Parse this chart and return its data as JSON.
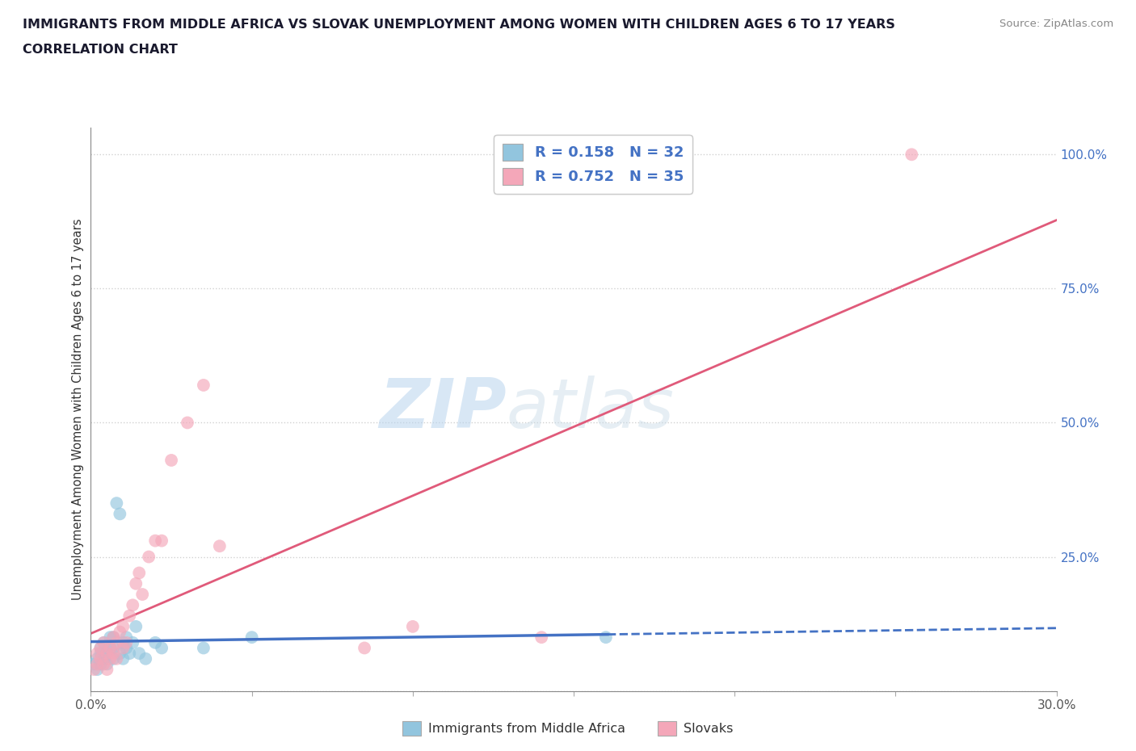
{
  "title_line1": "IMMIGRANTS FROM MIDDLE AFRICA VS SLOVAK UNEMPLOYMENT AMONG WOMEN WITH CHILDREN AGES 6 TO 17 YEARS",
  "title_line2": "CORRELATION CHART",
  "source_text": "Source: ZipAtlas.com",
  "ylabel": "Unemployment Among Women with Children Ages 6 to 17 years",
  "xlim": [
    0.0,
    0.3
  ],
  "ylim": [
    0.0,
    1.05
  ],
  "legend_label1": "Immigrants from Middle Africa",
  "legend_label2": "Slovaks",
  "R1": 0.158,
  "N1": 32,
  "R2": 0.752,
  "N2": 35,
  "color1": "#92C5DE",
  "color2": "#F4A7B9",
  "line_color1": "#4472c4",
  "line_color2": "#e05a7a",
  "watermark_zip": "ZIP",
  "watermark_atlas": "atlas",
  "background_color": "#ffffff",
  "scatter1_x": [
    0.001,
    0.002,
    0.002,
    0.003,
    0.003,
    0.003,
    0.004,
    0.004,
    0.005,
    0.005,
    0.006,
    0.006,
    0.007,
    0.007,
    0.007,
    0.008,
    0.009,
    0.009,
    0.01,
    0.01,
    0.011,
    0.011,
    0.012,
    0.013,
    0.014,
    0.015,
    0.017,
    0.02,
    0.022,
    0.035,
    0.05,
    0.16
  ],
  "scatter1_y": [
    0.05,
    0.04,
    0.06,
    0.07,
    0.05,
    0.08,
    0.06,
    0.09,
    0.07,
    0.05,
    0.08,
    0.1,
    0.06,
    0.08,
    0.1,
    0.35,
    0.33,
    0.07,
    0.09,
    0.06,
    0.08,
    0.1,
    0.07,
    0.09,
    0.12,
    0.07,
    0.06,
    0.09,
    0.08,
    0.08,
    0.1,
    0.1
  ],
  "scatter2_x": [
    0.001,
    0.002,
    0.002,
    0.003,
    0.003,
    0.004,
    0.004,
    0.005,
    0.005,
    0.006,
    0.006,
    0.007,
    0.007,
    0.008,
    0.008,
    0.009,
    0.01,
    0.01,
    0.011,
    0.012,
    0.013,
    0.014,
    0.015,
    0.016,
    0.018,
    0.02,
    0.022,
    0.025,
    0.03,
    0.035,
    0.04,
    0.085,
    0.1,
    0.14,
    0.255
  ],
  "scatter2_y": [
    0.04,
    0.05,
    0.07,
    0.06,
    0.08,
    0.05,
    0.09,
    0.07,
    0.04,
    0.08,
    0.06,
    0.1,
    0.07,
    0.09,
    0.06,
    0.11,
    0.08,
    0.12,
    0.09,
    0.14,
    0.16,
    0.2,
    0.22,
    0.18,
    0.25,
    0.28,
    0.28,
    0.43,
    0.5,
    0.57,
    0.27,
    0.08,
    0.12,
    0.1,
    1.0
  ]
}
